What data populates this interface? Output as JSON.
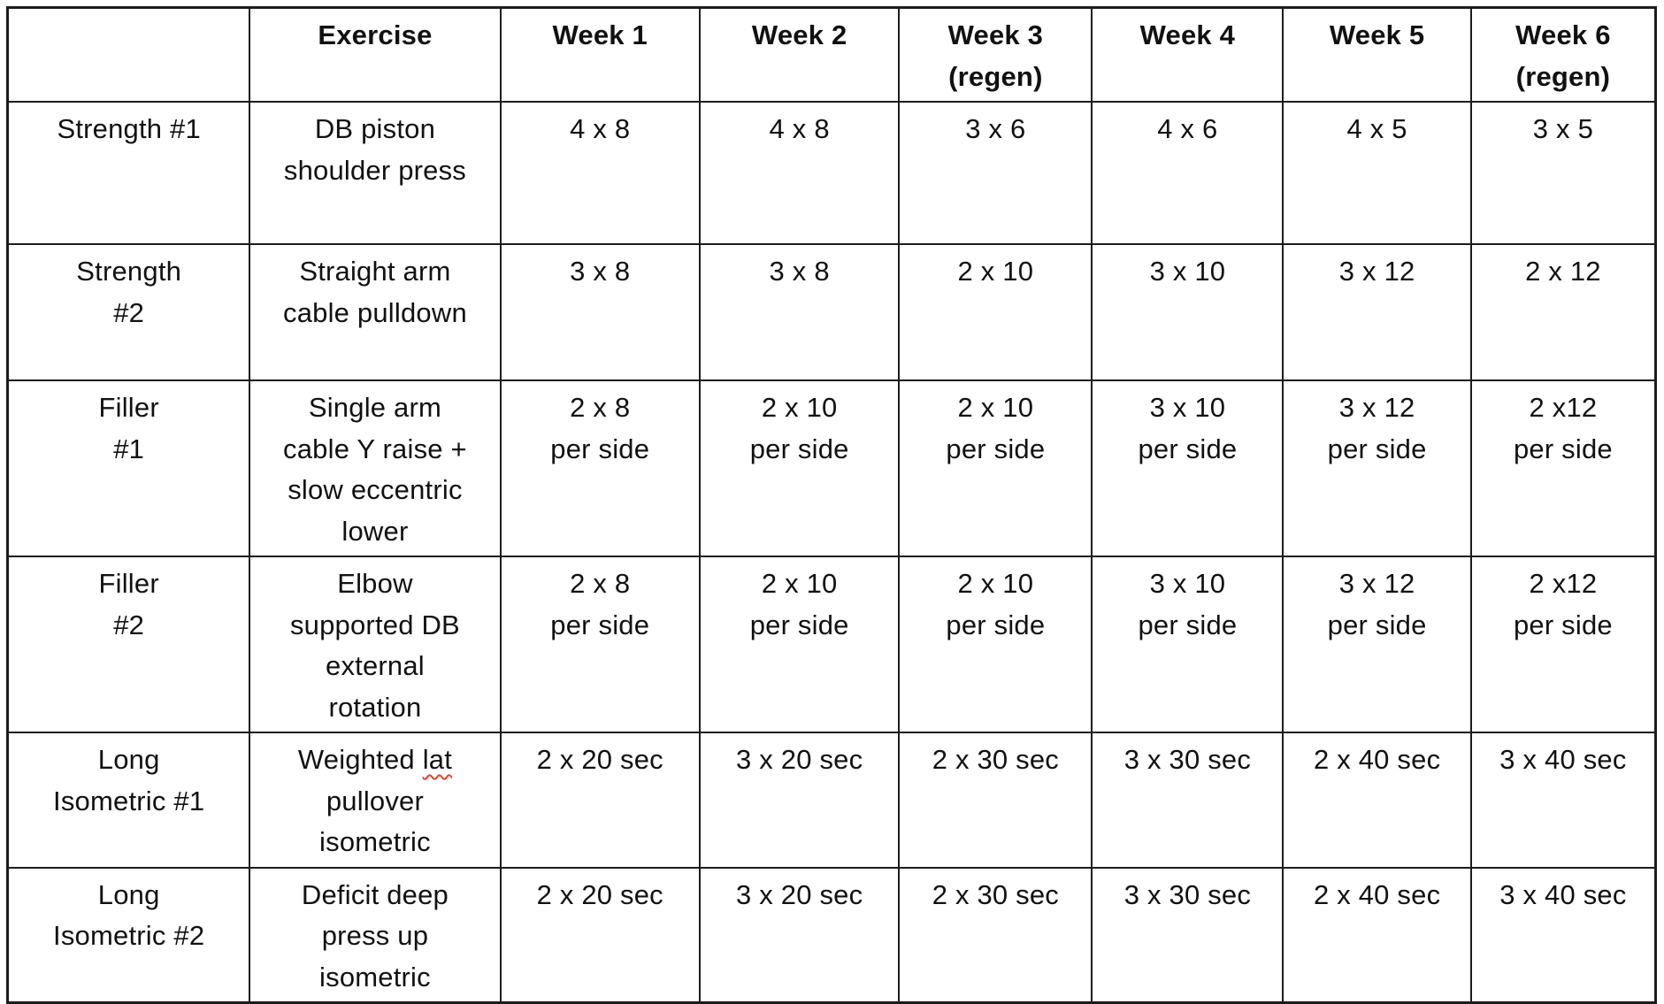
{
  "table": {
    "border_color": "#1c1c1c",
    "spellcheck_underline_color": "#e0442c",
    "header": {
      "corner": "",
      "exercise": "Exercise",
      "weeks": [
        "Week 1",
        "Week 2",
        "Week 3\n(regen)",
        "Week 4",
        "Week 5",
        "Week 6\n(regen)"
      ]
    },
    "rows": [
      {
        "label": "Strength #1",
        "exercise": "DB piston\nshoulder press",
        "weeks": [
          "4 x 8",
          "4 x 8",
          "3 x 6",
          "4 x 6",
          "4 x 5",
          "3 x 5"
        ]
      },
      {
        "label": "Strength\n#2",
        "exercise": "Straight arm\ncable pulldown",
        "weeks": [
          "3 x 8",
          "3 x 8",
          "2 x 10",
          "3 x 10",
          "3 x 12",
          "2 x 12"
        ]
      },
      {
        "label": "Filler\n#1",
        "exercise": "Single arm\ncable Y raise +\nslow eccentric\nlower",
        "weeks": [
          "2 x 8\nper side",
          "2 x 10\nper side",
          "2 x 10\nper side",
          "3 x 10\nper side",
          "3 x 12\nper side",
          "2 x12\nper side"
        ]
      },
      {
        "label": "Filler\n#2",
        "exercise": "Elbow\nsupported DB\nexternal\nrotation",
        "weeks": [
          "2 x 8\nper side",
          "2 x 10\nper side",
          "2 x 10\nper side",
          "3 x 10\nper side",
          "3 x 12\nper side",
          "2 x12\nper side"
        ]
      },
      {
        "label": "Long\nIsometric #1",
        "exercise_before": "Weighted ",
        "exercise_misspelled": "lat",
        "exercise_after": "\npullover\nisometric",
        "weeks": [
          "2 x 20 sec",
          "3 x 20 sec",
          "2 x 30 sec",
          "3 x 30 sec",
          "2 x 40 sec",
          "3 x 40 sec"
        ]
      },
      {
        "label": "Long\nIsometric #2",
        "exercise": "Deficit deep\npress up\nisometric",
        "weeks": [
          "2 x 20 sec",
          "3 x 20 sec",
          "2 x 30 sec",
          "3 x 30 sec",
          "2 x 40 sec",
          "3 x 40 sec"
        ]
      }
    ]
  }
}
